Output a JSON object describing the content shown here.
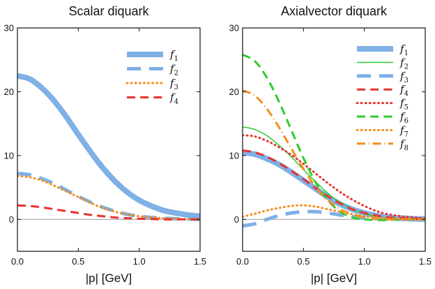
{
  "colors": {
    "blue": "#7fb0e6",
    "green": "#2ecc2e",
    "orange": "#f28e1c",
    "red": "#e8332f"
  },
  "chart_data": [
    {
      "type": "line",
      "title": "Scalar diquark",
      "xlabel": "|p| [GeV]",
      "ylabel": "",
      "xlim": [
        0,
        1.5
      ],
      "ylim": [
        -5,
        30
      ],
      "xticks": [
        "0.0",
        "0.5",
        "1.0",
        "1.5"
      ],
      "yticks": [
        "0",
        "10",
        "20",
        "30"
      ],
      "xtick_values": [
        0,
        0.5,
        1.0,
        1.5
      ],
      "ytick_values": [
        0,
        10,
        20,
        30
      ],
      "legend_position": "top-right",
      "x": [
        0,
        0.1,
        0.2,
        0.3,
        0.4,
        0.5,
        0.6,
        0.7,
        0.8,
        0.9,
        1.0,
        1.1,
        1.2,
        1.3,
        1.4,
        1.5
      ],
      "series": [
        {
          "name": "f1",
          "color": "blue",
          "style": "solid",
          "width": 8,
          "values": [
            22.5,
            22.0,
            20.6,
            18.6,
            16.1,
            13.3,
            10.6,
            8.1,
            6.0,
            4.3,
            3.0,
            2.1,
            1.4,
            1.0,
            0.7,
            0.5
          ]
        },
        {
          "name": "f2",
          "color": "blue",
          "style": "dashed",
          "width": 5,
          "values": [
            7.2,
            7.0,
            6.4,
            5.6,
            4.6,
            3.6,
            2.7,
            1.9,
            1.3,
            0.8,
            0.5,
            0.3,
            0.2,
            0.1,
            0.05,
            0.0
          ]
        },
        {
          "name": "f3",
          "color": "orange",
          "style": "dotted",
          "width": 3,
          "values": [
            6.8,
            6.6,
            6.1,
            5.3,
            4.4,
            3.5,
            2.6,
            1.8,
            1.2,
            0.8,
            0.5,
            0.3,
            0.2,
            0.1,
            0.05,
            0.0
          ]
        },
        {
          "name": "f4",
          "color": "red",
          "style": "dashed",
          "width": 3,
          "values": [
            2.2,
            2.1,
            1.9,
            1.6,
            1.3,
            1.0,
            0.7,
            0.5,
            0.3,
            0.2,
            0.1,
            0.05,
            0.0,
            0.0,
            0.0,
            0.0
          ]
        }
      ]
    },
    {
      "type": "line",
      "title": "Axialvector diquark",
      "xlabel": "|p| [GeV]",
      "ylabel": "",
      "xlim": [
        0,
        1.5
      ],
      "ylim": [
        -5,
        30
      ],
      "xticks": [
        "0.0",
        "0.5",
        "1.0",
        "1.5"
      ],
      "yticks": [
        "0",
        "10",
        "20",
        "30"
      ],
      "xtick_values": [
        0,
        0.5,
        1.0,
        1.5
      ],
      "ytick_values": [
        0,
        10,
        20,
        30
      ],
      "legend_position": "top-right",
      "x": [
        0,
        0.1,
        0.2,
        0.3,
        0.4,
        0.5,
        0.6,
        0.7,
        0.8,
        0.9,
        1.0,
        1.1,
        1.2,
        1.3,
        1.4,
        1.5
      ],
      "series": [
        {
          "name": "f1",
          "color": "blue",
          "style": "solid",
          "width": 8,
          "values": [
            10.5,
            10.2,
            9.5,
            8.6,
            7.4,
            6.1,
            4.8,
            3.5,
            2.4,
            1.6,
            1.0,
            0.6,
            0.3,
            0.2,
            0.1,
            0.05
          ]
        },
        {
          "name": "f2",
          "color": "green",
          "style": "solid",
          "width": 1.5,
          "values": [
            14.5,
            14.1,
            13.1,
            11.6,
            9.8,
            7.8,
            5.9,
            4.1,
            2.7,
            1.6,
            0.9,
            0.5,
            0.2,
            0.1,
            0.05,
            0.0
          ]
        },
        {
          "name": "f3",
          "color": "blue",
          "style": "dashed",
          "width": 5,
          "values": [
            -1.0,
            -0.7,
            0.0,
            0.6,
            1.0,
            1.2,
            1.2,
            1.0,
            0.7,
            0.4,
            0.2,
            0.1,
            0.05,
            0.0,
            0.0,
            0.0
          ]
        },
        {
          "name": "f4",
          "color": "red",
          "style": "dashed",
          "width": 3,
          "values": [
            10.8,
            10.5,
            9.8,
            8.8,
            7.6,
            6.3,
            4.9,
            3.6,
            2.5,
            1.6,
            1.0,
            0.6,
            0.3,
            0.2,
            0.1,
            0.05
          ]
        },
        {
          "name": "f5",
          "color": "red",
          "style": "dotted",
          "width": 3,
          "values": [
            13.2,
            13.0,
            12.3,
            11.3,
            10.1,
            8.7,
            7.2,
            5.7,
            4.3,
            3.1,
            2.1,
            1.3,
            0.8,
            0.5,
            0.3,
            0.15
          ]
        },
        {
          "name": "f6",
          "color": "green",
          "style": "dashed",
          "width": 3,
          "values": [
            25.8,
            24.8,
            22.2,
            18.4,
            14.0,
            9.6,
            5.8,
            3.0,
            1.2,
            0.3,
            0.0,
            -0.1,
            -0.1,
            0.0,
            0.0,
            0.0
          ]
        },
        {
          "name": "f7",
          "color": "orange",
          "style": "dotted",
          "width": 3,
          "values": [
            0.4,
            0.9,
            1.4,
            1.8,
            2.1,
            2.2,
            2.0,
            1.6,
            1.2,
            0.8,
            0.5,
            0.3,
            0.15,
            0.05,
            0.0,
            0.0
          ]
        },
        {
          "name": "f8",
          "color": "orange",
          "style": "dashdot",
          "width": 3,
          "values": [
            20.2,
            19.4,
            17.3,
            14.4,
            11.1,
            7.9,
            5.1,
            3.0,
            1.6,
            0.8,
            0.3,
            0.1,
            0.0,
            0.0,
            0.0,
            0.0
          ]
        }
      ]
    }
  ]
}
